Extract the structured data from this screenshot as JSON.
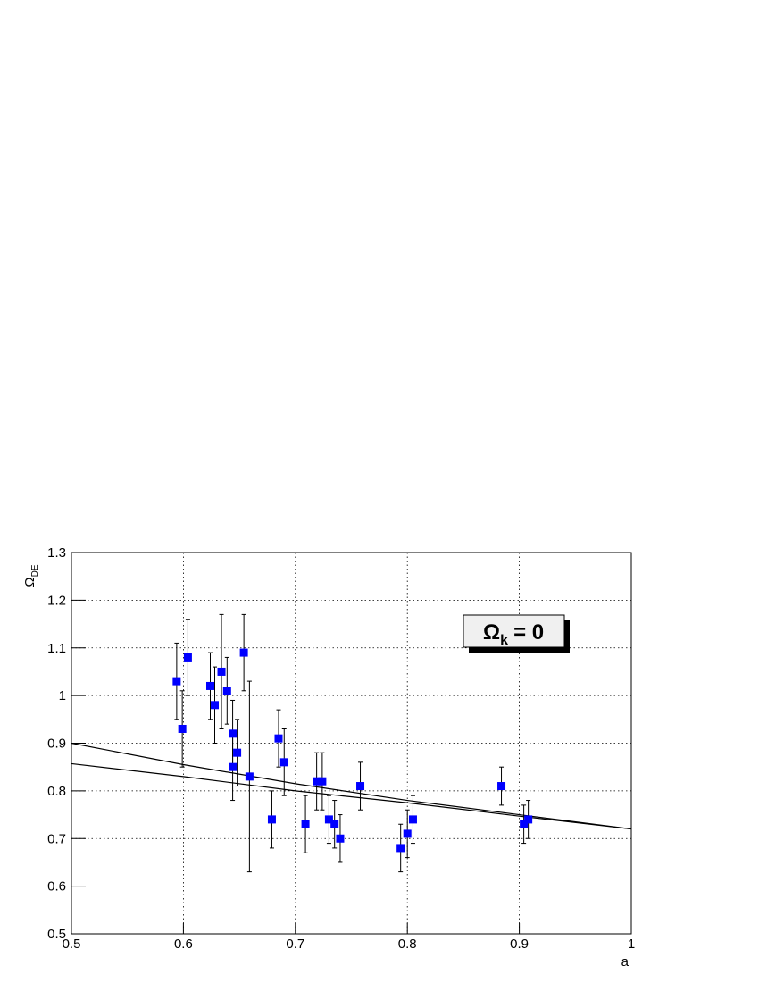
{
  "chart_data": {
    "type": "scatter",
    "x_label": "a",
    "y_label": {
      "symbol": "Ω",
      "subscript": "DE"
    },
    "annotation": {
      "symbol": "Ω",
      "subscript": "k",
      "text": "= 0"
    },
    "xlim": [
      0.5,
      1
    ],
    "ylim": [
      0.5,
      1.3
    ],
    "xticks": [
      0.5,
      0.6,
      0.7,
      0.8,
      0.9,
      1
    ],
    "yticks": [
      0.5,
      0.6,
      0.7,
      0.8,
      0.9,
      1,
      1.1,
      1.2,
      1.3
    ],
    "grid": true,
    "points": {
      "color": "#0000ff",
      "x": [
        0.594,
        0.599,
        0.604,
        0.624,
        0.628,
        0.634,
        0.639,
        0.644,
        0.644,
        0.648,
        0.654,
        0.659,
        0.679,
        0.685,
        0.69,
        0.709,
        0.719,
        0.724,
        0.73,
        0.735,
        0.74,
        0.758,
        0.794,
        0.8,
        0.805,
        0.884,
        0.904,
        0.908
      ],
      "y": [
        1.03,
        0.93,
        1.08,
        1.02,
        0.98,
        1.05,
        1.01,
        0.92,
        0.85,
        0.88,
        1.09,
        0.83,
        0.74,
        0.91,
        0.86,
        0.73,
        0.82,
        0.82,
        0.74,
        0.73,
        0.7,
        0.81,
        0.68,
        0.71,
        0.74,
        0.81,
        0.73,
        0.74
      ],
      "err": [
        0.08,
        0.08,
        0.08,
        0.07,
        0.08,
        0.12,
        0.07,
        0.07,
        0.07,
        0.07,
        0.08,
        0.2,
        0.06,
        0.06,
        0.07,
        0.06,
        0.06,
        0.06,
        0.05,
        0.05,
        0.05,
        0.05,
        0.05,
        0.05,
        0.05,
        0.04,
        0.04,
        0.04
      ]
    },
    "lines": [
      {
        "color": "#000000",
        "x": [
          0.5,
          0.6,
          0.7,
          0.8,
          0.9,
          1
        ],
        "y": [
          0.9,
          0.855,
          0.815,
          0.78,
          0.75,
          0.72
        ]
      },
      {
        "color": "#000000",
        "x": [
          0.5,
          0.6,
          0.7,
          0.8,
          0.9,
          1
        ],
        "y": [
          0.857,
          0.83,
          0.8,
          0.775,
          0.747,
          0.72
        ]
      }
    ]
  }
}
